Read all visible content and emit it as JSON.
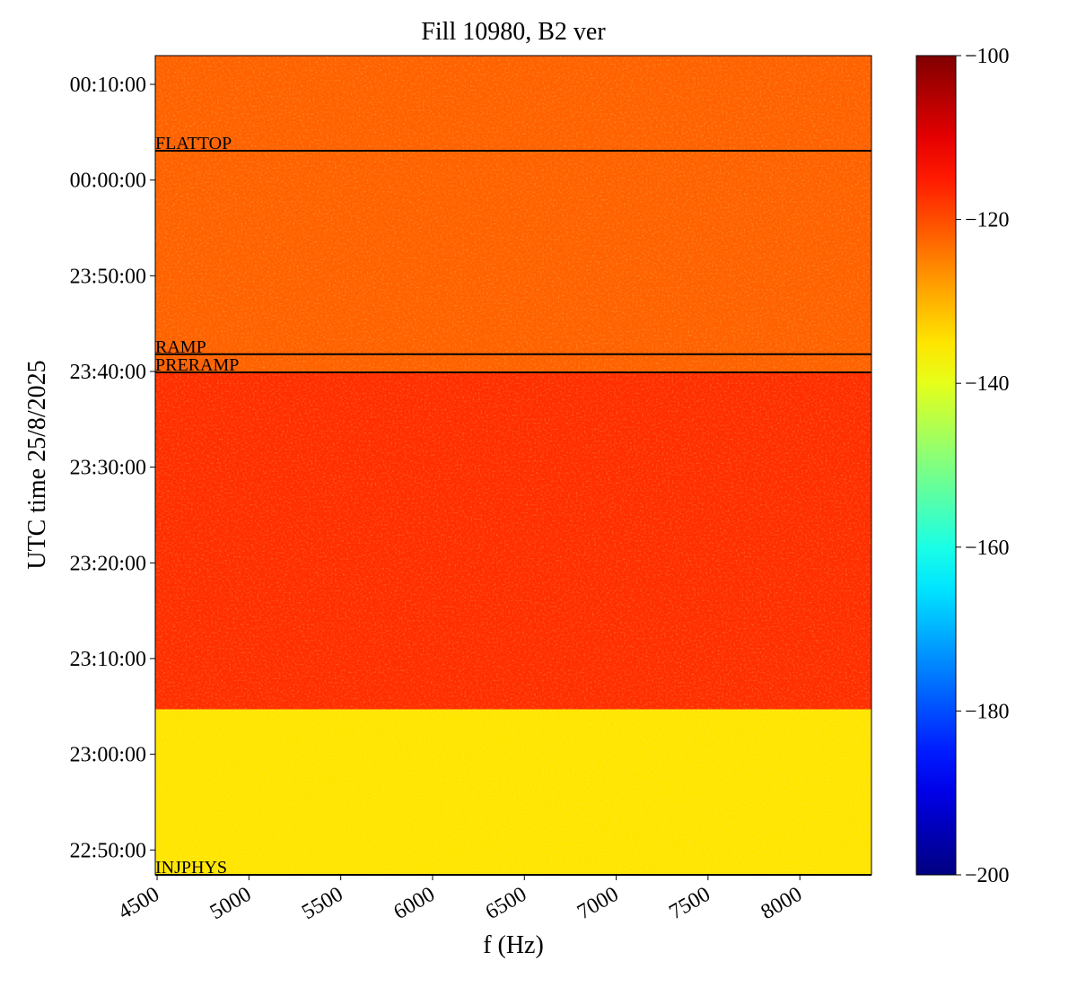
{
  "chart_data": {
    "type": "heatmap",
    "title": "Fill 10980, B2 ver",
    "xlabel": "f (Hz)",
    "ylabel": "UTC time 25/8/2025",
    "xlim": [
      4490,
      8390
    ],
    "xticks": [
      4500,
      5000,
      5500,
      6000,
      6500,
      7000,
      7500,
      8000
    ],
    "ylim": [
      82044,
      87180
    ],
    "yticks": [
      {
        "value": 82200,
        "label": "22:50:00"
      },
      {
        "value": 82800,
        "label": "23:00:00"
      },
      {
        "value": 83400,
        "label": "23:10:00"
      },
      {
        "value": 84000,
        "label": "23:20:00"
      },
      {
        "value": 84600,
        "label": "23:30:00"
      },
      {
        "value": 85200,
        "label": "23:40:00"
      },
      {
        "value": 85800,
        "label": "23:50:00"
      },
      {
        "value": 86400,
        "label": "00:00:00"
      },
      {
        "value": 87000,
        "label": "00:10:00"
      }
    ],
    "spectrum": {
      "time_bins": [
        82044,
        83082,
        85194,
        87180
      ],
      "levels": [
        -135,
        -117,
        -122
      ]
    },
    "zlim": [
      -200,
      -100
    ],
    "zticks": [
      {
        "value": -100,
        "label": "−100"
      },
      {
        "value": -120,
        "label": "−120"
      },
      {
        "value": -140,
        "label": "−140"
      },
      {
        "value": -160,
        "label": "−160"
      },
      {
        "value": -180,
        "label": "−180"
      },
      {
        "value": -200,
        "label": "−200"
      }
    ],
    "colormap": "jet",
    "annotations": [
      {
        "label": "FLATTOP",
        "time": 86584
      },
      {
        "label": "RAMP",
        "time": 85308
      },
      {
        "label": "PRERAMP",
        "time": 85194
      },
      {
        "label": "INJPHYS",
        "time": 82044
      }
    ]
  }
}
